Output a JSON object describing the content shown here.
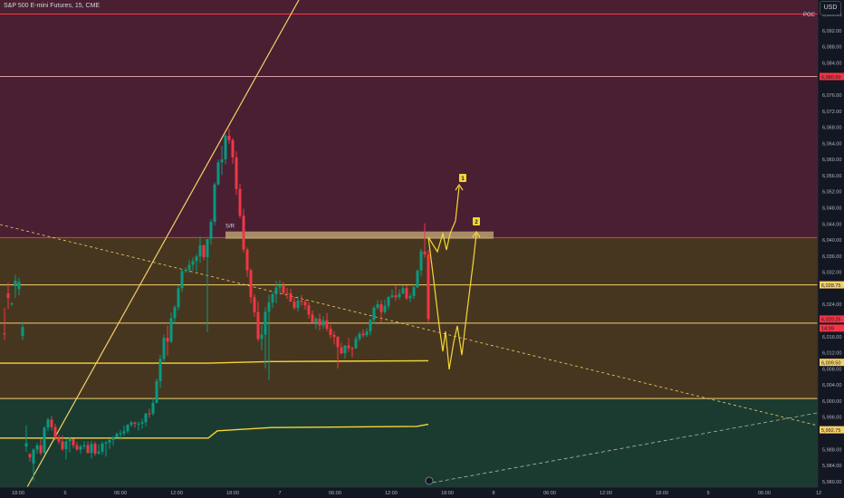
{
  "header": {
    "title": "S&P 500 E-mini Futures, 15, CME"
  },
  "currency": "USD",
  "chart_data": {
    "type": "candlestick",
    "x_ticks": [
      "18:00",
      "6",
      "06:00",
      "12:00",
      "18:00",
      "7",
      "06:00",
      "12:00",
      "18:00",
      "8",
      "06:00",
      "12:00",
      "18:00",
      "9",
      "06:00",
      "12"
    ],
    "y_ticks": [
      "6,096.00",
      "6,092.00",
      "6,088.00",
      "6,084.00",
      "6,076.00",
      "6,072.00",
      "6,068.00",
      "6,064.00",
      "6,060.00",
      "6,056.00",
      "6,052.00",
      "6,048.00",
      "6,044.00",
      "6,040.00",
      "6,036.00",
      "6,032.00",
      "6,024.00",
      "6,016.00",
      "6,012.00",
      "6,008.00",
      "6,004.00",
      "6,000.00",
      "5,996.00",
      "5,988.00",
      "5,984.00",
      "5,980.00"
    ],
    "ylim": [
      5978.5,
      6099.5
    ],
    "zones": [
      {
        "from": 6040.5,
        "to": 6099.5,
        "color": "#4a1f32"
      },
      {
        "from": 6000.5,
        "to": 6040.5,
        "color": "#47361f"
      },
      {
        "from": 5978.5,
        "to": 6000.5,
        "color": "#1c3b30"
      }
    ],
    "levels": [
      {
        "price": 6096.0,
        "color": "#f23645",
        "label": "POC"
      },
      {
        "price": 6080.5,
        "color": "#d89aa8"
      },
      {
        "price": 6040.5,
        "color": "#f23645"
      },
      {
        "price": 6028.75,
        "color": "#f5d06a"
      },
      {
        "price": 6019.25,
        "color": "#f5d06a"
      },
      {
        "price": 6000.5,
        "color": "#f5d06a"
      }
    ],
    "price_tags": [
      {
        "price": 6080.5,
        "text": "6,080.50",
        "bg": "#f23645"
      },
      {
        "price": 6028.75,
        "text": "6,028.75",
        "bg": "#f5d06a"
      },
      {
        "price": 6020.25,
        "text": "6,020.25",
        "bg": "#f23645"
      },
      {
        "price": 6018.0,
        "text": "14:09",
        "bg": "#f23645"
      },
      {
        "price": 6009.5,
        "text": "6,009.50",
        "bg": "#f5d06a"
      },
      {
        "price": 5992.75,
        "text": "5,992.75",
        "bg": "#f5d06a"
      }
    ],
    "sr_box": {
      "label": "S/R",
      "from": 6040.2,
      "to": 6042.0
    },
    "wave_labels": [
      "1",
      "2"
    ],
    "vwap_upper": [
      [
        0,
        6009.3
      ],
      [
        230,
        6009.3
      ],
      [
        300,
        6009.7
      ],
      [
        473,
        6009.9
      ]
    ],
    "vwap_lower": [
      [
        0,
        5990.7
      ],
      [
        120,
        5990.7
      ],
      [
        230,
        5990.7
      ],
      [
        240,
        5992.5
      ],
      [
        300,
        5993.3
      ],
      [
        460,
        5993.6
      ],
      [
        473,
        5994.1
      ]
    ],
    "candles": [
      [
        6016.71,
        6023.0,
        6015.06,
        6016.5,
        5
      ],
      [
        6026.64,
        6029.26,
        6022.74,
        6025.47,
        9
      ],
      [
        6023.88,
        6024.43,
        6023.54,
        6024.1,
        13
      ],
      [
        6028.42,
        6031.21,
        6025.45,
        6029.79,
        17
      ],
      [
        6027.69,
        6030.45,
        6026.19,
        6029.48,
        21
      ],
      [
        6016.0,
        6019.52,
        6015.02,
        6018.26,
        25
      ],
      [
        5988.57,
        5993.84,
        5987.22,
        5989.43,
        29
      ],
      [
        5986.72,
        5986.98,
        5984.87,
        5985.9,
        33
      ],
      [
        5984.38,
        5988.11,
        5980.1,
        5987.83,
        37
      ],
      [
        5987.83,
        5989.5,
        5986.83,
        5988.87,
        41
      ],
      [
        5988.87,
        5990.45,
        5986.46,
        5986.96,
        45
      ],
      [
        5986.96,
        5993.67,
        5986.84,
        5993.27,
        49
      ],
      [
        5993.27,
        5995.73,
        5992.42,
        5995.27,
        53
      ],
      [
        5995.27,
        5996.18,
        5992.61,
        5993.44,
        57
      ],
      [
        5993.44,
        5994.28,
        5990.17,
        5990.7,
        61
      ],
      [
        5990.7,
        5991.46,
        5989.17,
        5989.86,
        65
      ],
      [
        5989.86,
        5991.38,
        5987.49,
        5987.94,
        69
      ],
      [
        5987.94,
        5990.55,
        5985.38,
        5989.89,
        73
      ],
      [
        5989.89,
        5990.9,
        5987.09,
        5990.5,
        77
      ],
      [
        5990.5,
        5990.52,
        5988.24,
        5988.91,
        81
      ],
      [
        5988.91,
        5989.73,
        5987.63,
        5987.82,
        85
      ],
      [
        5987.82,
        5989.07,
        5986.74,
        5988.61,
        89
      ],
      [
        5988.61,
        5989.89,
        5987.91,
        5988.94,
        93
      ],
      [
        5988.94,
        5989.83,
        5986.82,
        5987.0,
        97
      ],
      [
        5987.0,
        5990.0,
        5985.65,
        5989.28,
        101
      ],
      [
        5989.28,
        5989.79,
        5986.25,
        5986.85,
        105
      ],
      [
        5986.85,
        5989.14,
        5986.56,
        5987.33,
        109
      ],
      [
        5987.33,
        5989.89,
        5986.54,
        5989.33,
        113
      ],
      [
        5989.33,
        5990.05,
        5986.06,
        5989.57,
        117
      ],
      [
        5989.57,
        5990.4,
        5988.02,
        5990.23,
        121
      ],
      [
        5990.23,
        5991.2,
        5988.8,
        5990.81,
        125
      ],
      [
        5990.81,
        5992.13,
        5990.74,
        5991.73,
        129
      ],
      [
        5991.73,
        5992.64,
        5990.31,
        5991.87,
        133
      ],
      [
        5991.87,
        5993.79,
        5991.21,
        5992.37,
        137
      ],
      [
        5992.37,
        5994.16,
        5991.86,
        5993.97,
        141
      ],
      [
        5993.97,
        5994.94,
        5993.46,
        5994.57,
        145
      ],
      [
        5994.57,
        5994.77,
        5993.25,
        5994.26,
        149
      ],
      [
        5994.26,
        5994.87,
        5992.61,
        5994.26,
        153
      ],
      [
        5994.26,
        5995.53,
        5993.01,
        5994.62,
        157
      ],
      [
        5994.62,
        5996.89,
        5993.59,
        5996.81,
        161
      ],
      [
        5996.81,
        5997.97,
        5995.77,
        5996.78,
        165
      ],
      [
        5996.78,
        6000.7,
        5996.27,
        5999.43,
        169
      ],
      [
        5999.43,
        6005.52,
        5999.36,
        6004.82,
        173
      ],
      [
        6004.82,
        6011.34,
        6003.12,
        6010.35,
        177
      ],
      [
        6010.35,
        6016.43,
        6009.75,
        6015.62,
        181
      ],
      [
        6015.62,
        6018.58,
        6011.13,
        6014.64,
        185
      ],
      [
        6014.64,
        6021.81,
        6014.29,
        6020.48,
        189
      ],
      [
        6020.48,
        6023.68,
        6019.02,
        6023.22,
        193
      ],
      [
        6023.22,
        6028.6,
        6022.42,
        6027.94,
        197
      ],
      [
        6027.94,
        6032.71,
        6026.98,
        6032.14,
        201
      ],
      [
        6032.14,
        6033.16,
        6031.65,
        6032.44,
        205
      ],
      [
        6032.44,
        6034.86,
        6031.75,
        6033.73,
        209
      ],
      [
        6033.73,
        6035.54,
        6032.36,
        6034.61,
        213
      ],
      [
        6034.61,
        6036.37,
        6032.06,
        6035.81,
        217
      ],
      [
        6035.81,
        6040.74,
        6034.23,
        6038.56,
        221
      ],
      [
        6038.56,
        6038.77,
        6034.81,
        6035.61,
        225
      ],
      [
        6035.61,
        6040.12,
        6017.0,
        6040.12,
        229
      ],
      [
        6040.12,
        6045.08,
        6038.73,
        6044.4,
        233
      ],
      [
        6044.4,
        6054.17,
        6043.47,
        6053.69,
        237
      ],
      [
        6053.69,
        6059.88,
        6053.39,
        6059.17,
        241
      ],
      [
        6059.17,
        6063.3,
        6056.05,
        6059.92,
        245
      ],
      [
        6059.92,
        6066.22,
        6058.69,
        6065.78,
        249
      ],
      [
        6065.78,
        6067.5,
        6063.81,
        6064.71,
        253
      ],
      [
        6064.71,
        6065.21,
        6058.86,
        6060.4,
        257
      ],
      [
        6060.4,
        6061.89,
        6051.08,
        6052.58,
        261
      ],
      [
        6052.58,
        6053.86,
        6045.34,
        6045.92,
        265
      ],
      [
        6045.92,
        6047.62,
        6036.81,
        6037.51,
        269
      ],
      [
        6037.51,
        6038.01,
        6030.74,
        6032.33,
        273
      ],
      [
        6032.33,
        6032.84,
        6024.19,
        6025.68,
        277
      ],
      [
        6025.68,
        6026.42,
        6020.85,
        6021.99,
        281
      ],
      [
        6021.99,
        6024.58,
        6014.76,
        6015.29,
        285
      ],
      [
        6015.29,
        6018.9,
        6012.48,
        6016.36,
        289
      ],
      [
        6016.36,
        6023.19,
        6008.0,
        6022.02,
        293
      ],
      [
        6022.02,
        6026.31,
        6005.0,
        6024.35,
        297
      ],
      [
        6024.35,
        6026.9,
        6022.93,
        6026.39,
        301
      ],
      [
        6026.39,
        6029.78,
        6024.18,
        6028.09,
        305
      ],
      [
        6028.09,
        6029.88,
        6026.85,
        6028.55,
        309
      ],
      [
        6028.55,
        6029.4,
        6026.31,
        6026.74,
        313
      ],
      [
        6026.74,
        6028.02,
        6025.23,
        6026.64,
        317
      ],
      [
        6026.64,
        6027.78,
        6024.5,
        6024.57,
        321
      ],
      [
        6024.57,
        6025.75,
        6022.52,
        6022.99,
        325
      ],
      [
        6022.99,
        6025.89,
        6022.11,
        6024.79,
        329
      ],
      [
        6024.79,
        6026.18,
        6023.56,
        6024.51,
        333
      ],
      [
        6024.51,
        6025.07,
        6022.59,
        6023.65,
        337
      ],
      [
        6023.65,
        6024.45,
        6020.37,
        6021.37,
        341
      ],
      [
        6021.37,
        6022.35,
        6019.24,
        6019.41,
        345
      ],
      [
        6019.41,
        6020.78,
        6017.8,
        6020.34,
        349
      ],
      [
        6020.34,
        6021.58,
        6017.44,
        6018.62,
        353
      ],
      [
        6018.62,
        6020.95,
        6017.77,
        6019.95,
        357
      ],
      [
        6019.95,
        6021.75,
        6017.22,
        6017.84,
        361
      ],
      [
        6017.84,
        6018.81,
        6015.4,
        6016.3,
        365
      ],
      [
        6016.3,
        6017.24,
        6013.95,
        6015.81,
        369
      ],
      [
        6015.81,
        6016.07,
        6008.0,
        6013.27,
        373
      ],
      [
        6013.27,
        6014.36,
        6011.53,
        6011.73,
        377
      ],
      [
        6011.73,
        6013.82,
        6010.37,
        6013.68,
        381
      ],
      [
        6013.68,
        6015.56,
        6012.11,
        6013.03,
        385
      ],
      [
        6013.03,
        6013.4,
        6010.77,
        6012.96,
        389
      ],
      [
        6012.96,
        6015.97,
        6012.88,
        6015.34,
        393
      ],
      [
        6015.34,
        6017.0,
        6014.77,
        6016.62,
        397
      ],
      [
        6016.62,
        6017.68,
        6015.74,
        6016.24,
        401
      ],
      [
        6016.24,
        6017.97,
        6015.82,
        6017.17,
        405
      ],
      [
        6017.17,
        6020.4,
        6016.21,
        6020.03,
        409
      ],
      [
        6020.03,
        6023.53,
        6019.13,
        6023.03,
        413
      ],
      [
        6023.03,
        6024.98,
        6022.62,
        6023.93,
        417
      ],
      [
        6023.93,
        6024.95,
        6019.47,
        6021.97,
        421
      ],
      [
        6021.97,
        6025.04,
        6021.5,
        6023.52,
        425
      ],
      [
        6023.52,
        6025.98,
        6022.7,
        6025.71,
        429
      ],
      [
        6025.71,
        6027.6,
        6025.42,
        6026.13,
        433
      ],
      [
        6026.13,
        6028.57,
        6024.68,
        6025.67,
        437
      ],
      [
        6025.67,
        6027.61,
        6025.09,
        6026.58,
        441
      ],
      [
        6026.58,
        6028.62,
        6026.43,
        6027.91,
        445
      ],
      [
        6027.91,
        6028.65,
        6024.99,
        6025.43,
        449
      ],
      [
        6025.43,
        6026.56,
        6024.41,
        6025.94,
        453
      ],
      [
        6025.94,
        6028.83,
        6025.18,
        6028.12,
        457
      ],
      [
        6028.12,
        6032.56,
        6027.97,
        6032.31,
        461
      ],
      [
        6032.31,
        6037.71,
        6030.85,
        6037.07,
        465
      ],
      [
        6037.07,
        6044.0,
        6035.5,
        6036.31,
        469
      ],
      [
        6036.31,
        6037.43,
        6019.5,
        6020.25,
        473
      ]
    ]
  }
}
